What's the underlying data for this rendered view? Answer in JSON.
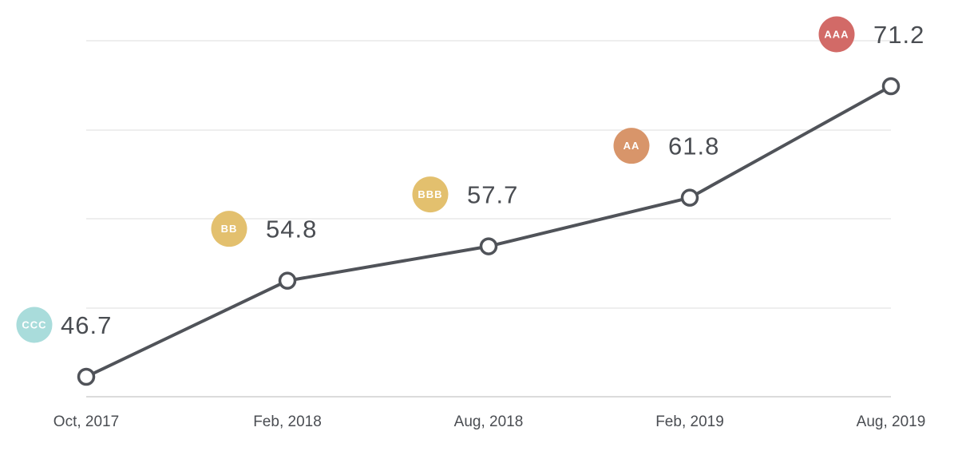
{
  "chart_data": {
    "type": "line",
    "categories": [
      "Oct, 2017",
      "Feb, 2018",
      "Aug, 2018",
      "Feb, 2019",
      "Aug, 2019"
    ],
    "values": [
      46.7,
      54.8,
      57.7,
      61.8,
      71.2
    ],
    "value_labels": [
      "46.7",
      "54.8",
      "57.7",
      "61.8",
      "71.2"
    ],
    "ratings": [
      "CCC",
      "BB",
      "BBB",
      "AA",
      "AAA"
    ],
    "rating_colors": [
      "#a9dcdb",
      "#e3c06e",
      "#e3c06e",
      "#d8956a",
      "#d26a67"
    ],
    "line_color": "#505359",
    "grid": true,
    "title": "",
    "xlabel": "",
    "ylabel": ""
  }
}
